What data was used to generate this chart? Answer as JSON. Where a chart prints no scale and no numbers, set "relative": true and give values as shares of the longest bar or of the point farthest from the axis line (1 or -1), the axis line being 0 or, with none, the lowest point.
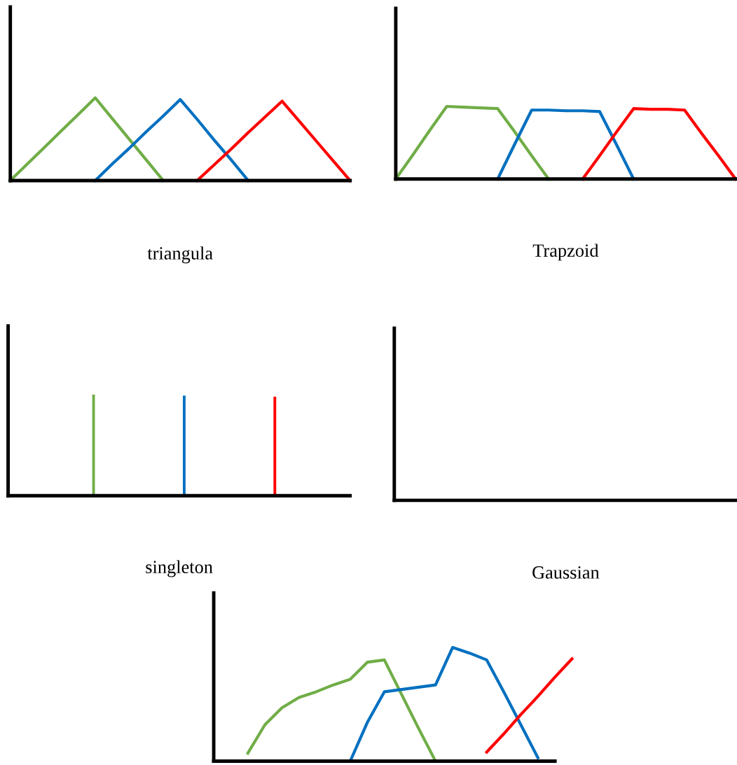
{
  "chart_data": [
    {
      "type": "line",
      "title": "triangula",
      "relative": true,
      "categories": [
        null,
        null,
        null,
        null,
        null,
        null,
        null,
        null,
        null,
        null,
        null,
        null,
        null,
        null,
        null,
        null,
        null,
        null,
        null,
        null,
        null
      ],
      "series": [
        {
          "color": "#70ad47",
          "values": [
            0,
            0.2,
            0.4,
            0.6,
            0.8,
            1,
            0.75,
            0.5,
            0.25,
            0,
            null,
            null,
            null,
            null,
            null,
            null,
            null,
            null,
            null,
            null,
            null
          ]
        },
        {
          "color": "#0070c0",
          "values": [
            null,
            null,
            null,
            null,
            null,
            0,
            0.2,
            0.39,
            0.59,
            0.78,
            0.98,
            0.74,
            0.49,
            0.25,
            0,
            null,
            null,
            null,
            null,
            null,
            null
          ]
        },
        {
          "color": "#ff0000",
          "values": [
            null,
            null,
            null,
            null,
            null,
            null,
            null,
            null,
            null,
            null,
            null,
            0,
            0.19,
            0.38,
            0.58,
            0.77,
            0.96,
            0.72,
            0.48,
            0.24,
            0
          ]
        }
      ]
    },
    {
      "type": "line",
      "title": "Trapzoid",
      "relative": true,
      "categories": [
        null,
        null,
        null,
        null,
        null,
        null,
        null,
        null,
        null,
        null,
        null,
        null,
        null,
        null,
        null,
        null,
        null,
        null,
        null,
        null,
        null
      ],
      "series": [
        {
          "color": "#70ad47",
          "values": [
            0,
            0.33,
            0.67,
            1,
            0.99,
            0.98,
            0.97,
            0.65,
            0.32,
            0,
            null,
            null,
            null,
            null,
            null,
            null,
            null,
            null,
            null,
            null,
            null
          ]
        },
        {
          "color": "#0070c0",
          "values": [
            null,
            null,
            null,
            null,
            null,
            null,
            0,
            0.48,
            0.95,
            0.95,
            0.94,
            0.94,
            0.93,
            0.47,
            0,
            null,
            null,
            null,
            null,
            null,
            null
          ]
        },
        {
          "color": "#ff0000",
          "values": [
            null,
            null,
            null,
            null,
            null,
            null,
            null,
            null,
            null,
            null,
            null,
            0,
            0.32,
            0.65,
            0.97,
            0.96,
            0.96,
            0.95,
            0.63,
            0.32,
            0
          ]
        }
      ]
    },
    {
      "type": "bar",
      "title": "singleton",
      "relative": true,
      "categories": [
        null,
        null,
        null
      ],
      "values": [
        1,
        0.99,
        0.98
      ],
      "colors": [
        "#70ad47",
        "#0070c0",
        "#ff0000"
      ]
    },
    {
      "type": "other",
      "title": "Gaussian"
    },
    {
      "type": "line",
      "relative": true,
      "categories": [
        null,
        null,
        null,
        null,
        null,
        null,
        null,
        null,
        null,
        null,
        null,
        null,
        null,
        null,
        null,
        null,
        null,
        null,
        null,
        null,
        null,
        null
      ],
      "series": [
        {
          "color": "#70ad47",
          "values": [
            null,
            null,
            0.07,
            0.32,
            0.47,
            0.56,
            0.61,
            0.67,
            0.72,
            0.87,
            0.89,
            0.59,
            0.29,
            0,
            null,
            null,
            null,
            null,
            null,
            null,
            null,
            null
          ]
        },
        {
          "color": "#0070c0",
          "values": [
            null,
            null,
            null,
            null,
            null,
            null,
            null,
            null,
            0,
            0.34,
            0.61,
            0.63,
            0.65,
            0.67,
            1,
            0.95,
            0.89,
            0.61,
            0.32,
            0.03,
            null,
            null
          ]
        },
        {
          "color": "#ff0000",
          "values": [
            null,
            null,
            null,
            null,
            null,
            null,
            null,
            null,
            null,
            null,
            null,
            null,
            null,
            null,
            null,
            null,
            0.08,
            0.24,
            0.41,
            0.57,
            0.74,
            0.9
          ]
        }
      ]
    }
  ]
}
